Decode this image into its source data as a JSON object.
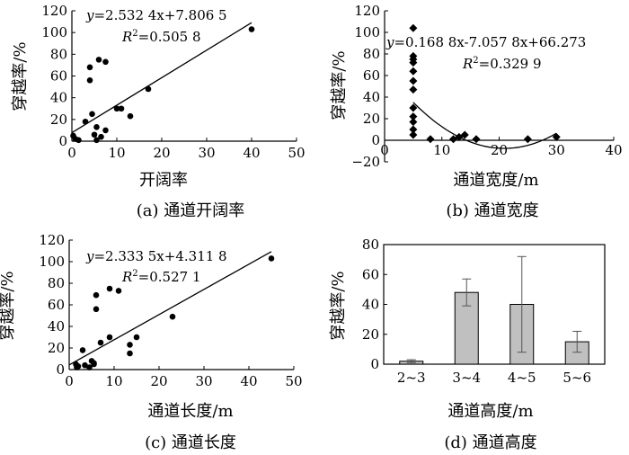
{
  "chart_data": [
    {
      "type": "scatter",
      "caption": "(a) 通道开阔率",
      "xlabel": "开阔率",
      "ylabel": "穿越率/%",
      "xlim": [
        0,
        50
      ],
      "ylim": [
        0,
        120
      ],
      "xticks": [
        "0",
        "10",
        "20",
        "30",
        "40",
        "50"
      ],
      "yticks": [
        "0",
        "20",
        "40",
        "60",
        "80",
        "100",
        "120"
      ],
      "equation": "y=2.532 4x+7.806 5",
      "r2": "R²=0.505 8",
      "marker": "circle",
      "fit": {
        "type": "linear",
        "slope": 2.5324,
        "intercept": 7.8065,
        "x_range": [
          0,
          40
        ]
      },
      "points": [
        [
          0.3,
          5
        ],
        [
          0.8,
          2
        ],
        [
          1.5,
          1
        ],
        [
          3,
          18
        ],
        [
          4,
          68
        ],
        [
          4,
          56
        ],
        [
          4.5,
          25
        ],
        [
          5,
          6
        ],
        [
          5.5,
          13
        ],
        [
          5.5,
          1
        ],
        [
          6,
          75
        ],
        [
          6.5,
          4
        ],
        [
          7.5,
          73
        ],
        [
          7.5,
          10
        ],
        [
          10,
          30
        ],
        [
          11,
          30
        ],
        [
          13,
          23
        ],
        [
          17,
          48
        ],
        [
          40,
          103
        ]
      ]
    },
    {
      "type": "scatter",
      "caption": "(b) 通道宽度",
      "xlabel": "通道宽度/m",
      "ylabel": "穿越率/%",
      "xlim": [
        0,
        40
      ],
      "ylim": [
        -20,
        120
      ],
      "xticks": [
        "0",
        "10",
        "20",
        "30",
        "40"
      ],
      "yticks": [
        "−20",
        "0",
        "20",
        "40",
        "60",
        "80",
        "100",
        "120"
      ],
      "equation": "y=0.168 8x-7.057 8x+66.273",
      "r2": "R²=0.329 9",
      "marker": "diamond",
      "fit": {
        "type": "quadratic",
        "a": 0.1688,
        "b": -7.0578,
        "c": 66.273,
        "x_range": [
          5,
          30
        ]
      },
      "points": [
        [
          5,
          104
        ],
        [
          5,
          78
        ],
        [
          5,
          75
        ],
        [
          5,
          72
        ],
        [
          5,
          64
        ],
        [
          5,
          55
        ],
        [
          5,
          47
        ],
        [
          5,
          30
        ],
        [
          5,
          22
        ],
        [
          5,
          17
        ],
        [
          5,
          10
        ],
        [
          5,
          5
        ],
        [
          8,
          1
        ],
        [
          12,
          1
        ],
        [
          13,
          3
        ],
        [
          14,
          5
        ],
        [
          16,
          1
        ],
        [
          25,
          1
        ],
        [
          30,
          3
        ]
      ]
    },
    {
      "type": "scatter",
      "caption": "(c) 通道长度",
      "xlabel": "通道长度/m",
      "ylabel": "穿越率/%",
      "xlim": [
        0,
        50
      ],
      "ylim": [
        0,
        120
      ],
      "xticks": [
        "0",
        "10",
        "20",
        "30",
        "40",
        "50"
      ],
      "yticks": [
        "0",
        "20",
        "40",
        "60",
        "80",
        "100",
        "120"
      ],
      "equation": "y=2.333 5x+4.311 8",
      "r2": "R²=0.527 1",
      "marker": "circle",
      "fit": {
        "type": "linear",
        "slope": 2.3335,
        "intercept": 4.3118,
        "x_range": [
          0,
          45
        ]
      },
      "points": [
        [
          1.5,
          5
        ],
        [
          1.7,
          2
        ],
        [
          2,
          3
        ],
        [
          3,
          18
        ],
        [
          3.5,
          4
        ],
        [
          4.5,
          2
        ],
        [
          5,
          8
        ],
        [
          5.5,
          6
        ],
        [
          5.5,
          5
        ],
        [
          6,
          56
        ],
        [
          6,
          69
        ],
        [
          7,
          25
        ],
        [
          9,
          75
        ],
        [
          9,
          30
        ],
        [
          11,
          73
        ],
        [
          13.5,
          23
        ],
        [
          13.5,
          15
        ],
        [
          15,
          30
        ],
        [
          23,
          49
        ],
        [
          45,
          103
        ]
      ]
    },
    {
      "type": "bar",
      "caption": "(d) 通道高度",
      "xlabel": "通道高度/m",
      "ylabel": "穿越率/%",
      "ylim": [
        0,
        80
      ],
      "yticks": [
        "0",
        "20",
        "40",
        "60",
        "80"
      ],
      "categories": [
        "2~3",
        "3~4",
        "4~5",
        "5~6"
      ],
      "values": [
        2,
        48,
        40,
        15
      ],
      "errors": [
        1,
        9,
        32,
        7
      ],
      "bar_color": "#c0c0c0"
    }
  ]
}
